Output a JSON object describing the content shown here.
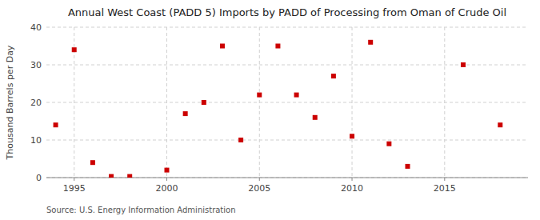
{
  "chart_data": {
    "type": "scatter",
    "title": "Annual West Coast (PADD 5) Imports by PADD of Processing from Oman of Crude Oil",
    "ylabel": "Thousand Barrels per Day",
    "annotations": [
      "Source: U.S. Energy Information Administration"
    ],
    "x": [
      1994,
      1995,
      1996,
      1997,
      1998,
      2000,
      2001,
      2002,
      2003,
      2004,
      2005,
      2006,
      2007,
      2008,
      2009,
      2010,
      2011,
      2012,
      2013,
      2016,
      2018
    ],
    "values": [
      14,
      34,
      4,
      0.3,
      0.3,
      2,
      17,
      20,
      35,
      10,
      22,
      35,
      22,
      16,
      27,
      11,
      36,
      9,
      3,
      30,
      14
    ],
    "color": "#cc0000",
    "marker": "square",
    "xlim": [
      1993.5,
      2019.5
    ],
    "xticks": [
      1995,
      2000,
      2005,
      2010,
      2015
    ],
    "ylim": [
      0,
      40
    ],
    "yticks": [
      0,
      10,
      20,
      30,
      40
    ],
    "grid": true
  }
}
